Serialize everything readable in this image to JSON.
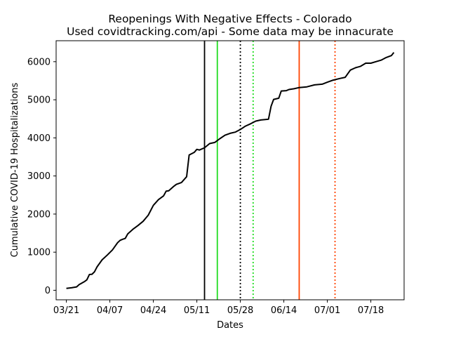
{
  "chart_data": {
    "type": "line",
    "title": "Reopenings With Negative Effects - Colorado",
    "subtitle": "Used covidtracking.com/api - Some data may be innacurate",
    "xlabel": "Dates",
    "ylabel": "Cumulative COVID-19 Hospitalizations",
    "year": 2020,
    "xlim": [
      "2020-03-17",
      "2020-07-31"
    ],
    "ylim": [
      -250,
      6550
    ],
    "grid": false,
    "legend": "none",
    "x_ticks": [
      {
        "date": "2020-03-21",
        "label": "03/21"
      },
      {
        "date": "2020-04-07",
        "label": "04/07"
      },
      {
        "date": "2020-04-24",
        "label": "04/24"
      },
      {
        "date": "2020-05-11",
        "label": "05/11"
      },
      {
        "date": "2020-05-28",
        "label": "05/28"
      },
      {
        "date": "2020-06-14",
        "label": "06/14"
      },
      {
        "date": "2020-07-01",
        "label": "07/01"
      },
      {
        "date": "2020-07-18",
        "label": "07/18"
      }
    ],
    "y_ticks": [
      0,
      1000,
      2000,
      3000,
      4000,
      5000,
      6000
    ],
    "series": [
      {
        "color": "#000000",
        "points": [
          [
            "2020-03-21",
            49
          ],
          [
            "2020-03-23",
            65
          ],
          [
            "2020-03-25",
            90
          ],
          [
            "2020-03-26",
            148
          ],
          [
            "2020-03-28",
            224
          ],
          [
            "2020-03-29",
            274
          ],
          [
            "2020-03-30",
            414
          ],
          [
            "2020-03-31",
            420
          ],
          [
            "2020-04-01",
            486
          ],
          [
            "2020-04-02",
            616
          ],
          [
            "2020-04-04",
            800
          ],
          [
            "2020-04-06",
            924
          ],
          [
            "2020-04-08",
            1056
          ],
          [
            "2020-04-10",
            1246
          ],
          [
            "2020-04-11",
            1310
          ],
          [
            "2020-04-12",
            1339
          ],
          [
            "2020-04-13",
            1360
          ],
          [
            "2020-04-14",
            1480
          ],
          [
            "2020-04-16",
            1600
          ],
          [
            "2020-04-18",
            1700
          ],
          [
            "2020-04-20",
            1810
          ],
          [
            "2020-04-22",
            1970
          ],
          [
            "2020-04-24",
            2230
          ],
          [
            "2020-04-26",
            2380
          ],
          [
            "2020-04-28",
            2480
          ],
          [
            "2020-04-29",
            2600
          ],
          [
            "2020-04-30",
            2610
          ],
          [
            "2020-05-02",
            2730
          ],
          [
            "2020-05-03",
            2780
          ],
          [
            "2020-05-05",
            2830
          ],
          [
            "2020-05-07",
            2980
          ],
          [
            "2020-05-08",
            3550
          ],
          [
            "2020-05-10",
            3620
          ],
          [
            "2020-05-11",
            3700
          ],
          [
            "2020-05-12",
            3680
          ],
          [
            "2020-05-14",
            3740
          ],
          [
            "2020-05-16",
            3850
          ],
          [
            "2020-05-18",
            3880
          ],
          [
            "2020-05-20",
            3980
          ],
          [
            "2020-05-22",
            4070
          ],
          [
            "2020-05-24",
            4120
          ],
          [
            "2020-05-26",
            4150
          ],
          [
            "2020-05-28",
            4220
          ],
          [
            "2020-05-30",
            4310
          ],
          [
            "2020-06-01",
            4370
          ],
          [
            "2020-06-03",
            4440
          ],
          [
            "2020-06-05",
            4470
          ],
          [
            "2020-06-08",
            4490
          ],
          [
            "2020-06-09",
            4830
          ],
          [
            "2020-06-10",
            5010
          ],
          [
            "2020-06-12",
            5040
          ],
          [
            "2020-06-13",
            5230
          ],
          [
            "2020-06-15",
            5240
          ],
          [
            "2020-06-16",
            5270
          ],
          [
            "2020-06-18",
            5290
          ],
          [
            "2020-06-20",
            5320
          ],
          [
            "2020-06-23",
            5340
          ],
          [
            "2020-06-26",
            5390
          ],
          [
            "2020-06-29",
            5410
          ],
          [
            "2020-07-01",
            5460
          ],
          [
            "2020-07-03",
            5510
          ],
          [
            "2020-07-06",
            5560
          ],
          [
            "2020-07-08",
            5590
          ],
          [
            "2020-07-10",
            5780
          ],
          [
            "2020-07-12",
            5840
          ],
          [
            "2020-07-14",
            5880
          ],
          [
            "2020-07-16",
            5960
          ],
          [
            "2020-07-18",
            5960
          ],
          [
            "2020-07-20",
            6000
          ],
          [
            "2020-07-22",
            6040
          ],
          [
            "2020-07-24",
            6110
          ],
          [
            "2020-07-26",
            6160
          ],
          [
            "2020-07-27",
            6240
          ]
        ]
      }
    ],
    "vertical_lines": [
      {
        "date": "2020-05-14",
        "color": "#000000",
        "style": "solid"
      },
      {
        "date": "2020-05-19",
        "color": "#22dd22",
        "style": "solid"
      },
      {
        "date": "2020-05-28",
        "color": "#000000",
        "style": "dotted"
      },
      {
        "date": "2020-06-02",
        "color": "#22dd22",
        "style": "dotted"
      },
      {
        "date": "2020-06-20",
        "color": "#ff4400",
        "style": "solid"
      },
      {
        "date": "2020-07-04",
        "color": "#ff4400",
        "style": "dotted"
      }
    ]
  }
}
